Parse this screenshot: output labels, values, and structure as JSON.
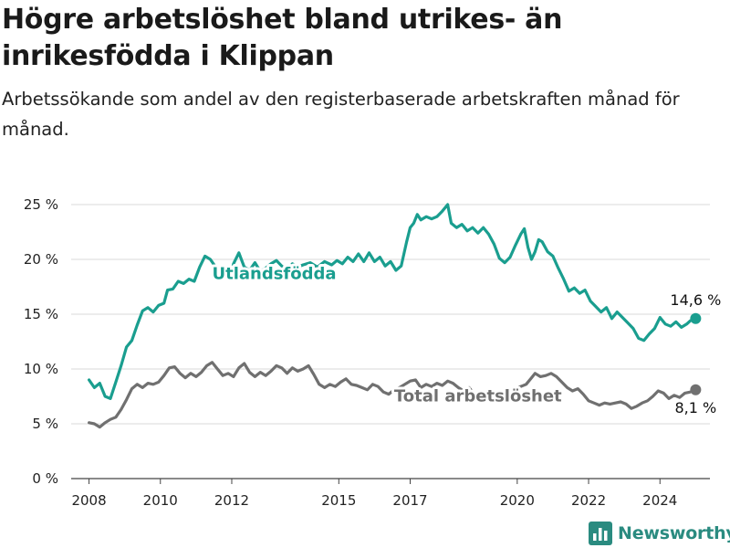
{
  "title": "Högre arbetslöshet bland utrikes- än inrikesfödda i Klippan",
  "subtitle": "Arbetssökande som andel av den registerbaserade arbetskraften månad för månad.",
  "brand": {
    "name": "Newsworthy",
    "icon": "bar-chart-logo-icon"
  },
  "colors": {
    "foreign_born": "#1a9e8f",
    "total": "#707070",
    "grid": "#d9d9d9",
    "brand": "#2a8b80"
  },
  "chart_data": {
    "type": "line",
    "ylim": [
      0,
      25
    ],
    "xlim": [
      2007.5,
      2025.4
    ],
    "y_ticks": [
      0,
      5,
      10,
      15,
      20,
      25
    ],
    "y_tick_labels": [
      "0 %",
      "5 %",
      "10 %",
      "15 %",
      "20 %",
      "25 %"
    ],
    "x_ticks": [
      2008,
      2010,
      2012,
      2015,
      2017,
      2020,
      2022,
      2024
    ],
    "x_tick_labels": [
      "2008",
      "2010",
      "2012",
      "2015",
      "2017",
      "2020",
      "2022",
      "2024"
    ],
    "grid": true,
    "legend": "inline labels",
    "series": [
      {
        "name": "Utlandsfödda",
        "end_label": "14,6 %",
        "points": [
          [
            2008.0,
            9.0
          ],
          [
            2008.15,
            8.3
          ],
          [
            2008.3,
            8.7
          ],
          [
            2008.45,
            7.5
          ],
          [
            2008.6,
            7.3
          ],
          [
            2008.75,
            8.8
          ],
          [
            2008.9,
            10.3
          ],
          [
            2009.05,
            12.0
          ],
          [
            2009.2,
            12.6
          ],
          [
            2009.35,
            14.0
          ],
          [
            2009.5,
            15.3
          ],
          [
            2009.65,
            15.6
          ],
          [
            2009.8,
            15.2
          ],
          [
            2009.95,
            15.8
          ],
          [
            2010.1,
            16.0
          ],
          [
            2010.2,
            17.2
          ],
          [
            2010.35,
            17.3
          ],
          [
            2010.5,
            18.0
          ],
          [
            2010.65,
            17.8
          ],
          [
            2010.8,
            18.2
          ],
          [
            2010.95,
            18.0
          ],
          [
            2011.1,
            19.3
          ],
          [
            2011.25,
            20.3
          ],
          [
            2011.4,
            20.0
          ],
          [
            2011.55,
            19.3
          ],
          [
            2011.7,
            18.6
          ],
          [
            2011.85,
            18.8
          ],
          [
            2011.95,
            18.3
          ],
          [
            2012.05,
            19.6
          ],
          [
            2012.2,
            20.6
          ],
          [
            2012.35,
            19.3
          ],
          [
            2012.5,
            19.0
          ],
          [
            2012.65,
            19.7
          ],
          [
            2012.8,
            18.9
          ],
          [
            2012.95,
            19.2
          ],
          [
            2013.1,
            19.6
          ],
          [
            2013.25,
            19.9
          ],
          [
            2013.4,
            19.4
          ],
          [
            2013.55,
            19.0
          ],
          [
            2013.7,
            19.6
          ],
          [
            2013.85,
            19.3
          ],
          [
            2014.0,
            19.5
          ],
          [
            2014.2,
            19.7
          ],
          [
            2014.4,
            19.3
          ],
          [
            2014.6,
            19.8
          ],
          [
            2014.8,
            19.5
          ],
          [
            2014.95,
            19.9
          ],
          [
            2015.1,
            19.6
          ],
          [
            2015.25,
            20.2
          ],
          [
            2015.4,
            19.8
          ],
          [
            2015.55,
            20.5
          ],
          [
            2015.7,
            19.8
          ],
          [
            2015.85,
            20.6
          ],
          [
            2016.0,
            19.8
          ],
          [
            2016.15,
            20.2
          ],
          [
            2016.3,
            19.4
          ],
          [
            2016.45,
            19.8
          ],
          [
            2016.6,
            19.0
          ],
          [
            2016.75,
            19.4
          ],
          [
            2016.9,
            21.6
          ],
          [
            2017.0,
            22.9
          ],
          [
            2017.1,
            23.3
          ],
          [
            2017.2,
            24.1
          ],
          [
            2017.3,
            23.6
          ],
          [
            2017.45,
            23.9
          ],
          [
            2017.6,
            23.7
          ],
          [
            2017.75,
            23.9
          ],
          [
            2017.9,
            24.4
          ],
          [
            2018.05,
            25.0
          ],
          [
            2018.15,
            23.3
          ],
          [
            2018.3,
            22.9
          ],
          [
            2018.45,
            23.2
          ],
          [
            2018.6,
            22.6
          ],
          [
            2018.75,
            22.9
          ],
          [
            2018.9,
            22.4
          ],
          [
            2019.05,
            22.9
          ],
          [
            2019.2,
            22.3
          ],
          [
            2019.35,
            21.4
          ],
          [
            2019.5,
            20.1
          ],
          [
            2019.65,
            19.7
          ],
          [
            2019.8,
            20.2
          ],
          [
            2019.95,
            21.3
          ],
          [
            2020.1,
            22.3
          ],
          [
            2020.2,
            22.8
          ],
          [
            2020.3,
            21.1
          ],
          [
            2020.4,
            20.0
          ],
          [
            2020.5,
            20.7
          ],
          [
            2020.6,
            21.8
          ],
          [
            2020.7,
            21.6
          ],
          [
            2020.85,
            20.7
          ],
          [
            2021.0,
            20.3
          ],
          [
            2021.15,
            19.2
          ],
          [
            2021.3,
            18.2
          ],
          [
            2021.45,
            17.1
          ],
          [
            2021.6,
            17.4
          ],
          [
            2021.75,
            16.9
          ],
          [
            2021.9,
            17.2
          ],
          [
            2022.05,
            16.2
          ],
          [
            2022.2,
            15.7
          ],
          [
            2022.35,
            15.2
          ],
          [
            2022.5,
            15.6
          ],
          [
            2022.65,
            14.6
          ],
          [
            2022.8,
            15.2
          ],
          [
            2022.95,
            14.7
          ],
          [
            2023.1,
            14.2
          ],
          [
            2023.25,
            13.7
          ],
          [
            2023.4,
            12.8
          ],
          [
            2023.55,
            12.6
          ],
          [
            2023.7,
            13.2
          ],
          [
            2023.85,
            13.7
          ],
          [
            2024.0,
            14.7
          ],
          [
            2024.15,
            14.1
          ],
          [
            2024.3,
            13.9
          ],
          [
            2024.45,
            14.3
          ],
          [
            2024.6,
            13.8
          ],
          [
            2024.75,
            14.1
          ],
          [
            2024.85,
            14.4
          ],
          [
            2025.0,
            14.6
          ]
        ]
      },
      {
        "name": "Total arbetslöshet",
        "end_label": "8,1 %",
        "points": [
          [
            2008.0,
            5.1
          ],
          [
            2008.15,
            5.0
          ],
          [
            2008.3,
            4.7
          ],
          [
            2008.45,
            5.1
          ],
          [
            2008.6,
            5.4
          ],
          [
            2008.75,
            5.6
          ],
          [
            2008.9,
            6.3
          ],
          [
            2009.05,
            7.2
          ],
          [
            2009.2,
            8.2
          ],
          [
            2009.35,
            8.6
          ],
          [
            2009.5,
            8.3
          ],
          [
            2009.65,
            8.7
          ],
          [
            2009.8,
            8.6
          ],
          [
            2009.95,
            8.8
          ],
          [
            2010.1,
            9.4
          ],
          [
            2010.25,
            10.1
          ],
          [
            2010.4,
            10.2
          ],
          [
            2010.55,
            9.6
          ],
          [
            2010.7,
            9.2
          ],
          [
            2010.85,
            9.6
          ],
          [
            2011.0,
            9.3
          ],
          [
            2011.15,
            9.7
          ],
          [
            2011.3,
            10.3
          ],
          [
            2011.45,
            10.6
          ],
          [
            2011.6,
            10.0
          ],
          [
            2011.75,
            9.4
          ],
          [
            2011.9,
            9.6
          ],
          [
            2012.05,
            9.3
          ],
          [
            2012.2,
            10.1
          ],
          [
            2012.35,
            10.5
          ],
          [
            2012.5,
            9.7
          ],
          [
            2012.65,
            9.3
          ],
          [
            2012.8,
            9.7
          ],
          [
            2012.95,
            9.4
          ],
          [
            2013.1,
            9.8
          ],
          [
            2013.25,
            10.3
          ],
          [
            2013.4,
            10.1
          ],
          [
            2013.55,
            9.6
          ],
          [
            2013.7,
            10.1
          ],
          [
            2013.85,
            9.8
          ],
          [
            2014.0,
            10.0
          ],
          [
            2014.15,
            10.3
          ],
          [
            2014.3,
            9.5
          ],
          [
            2014.45,
            8.6
          ],
          [
            2014.6,
            8.3
          ],
          [
            2014.75,
            8.6
          ],
          [
            2014.9,
            8.4
          ],
          [
            2015.05,
            8.8
          ],
          [
            2015.2,
            9.1
          ],
          [
            2015.35,
            8.6
          ],
          [
            2015.5,
            8.5
          ],
          [
            2015.65,
            8.3
          ],
          [
            2015.8,
            8.1
          ],
          [
            2015.95,
            8.6
          ],
          [
            2016.1,
            8.4
          ],
          [
            2016.25,
            7.9
          ],
          [
            2016.4,
            7.7
          ],
          [
            2016.55,
            8.1
          ],
          [
            2016.7,
            8.3
          ],
          [
            2016.85,
            8.6
          ],
          [
            2017.0,
            8.9
          ],
          [
            2017.15,
            9.0
          ],
          [
            2017.3,
            8.3
          ],
          [
            2017.45,
            8.6
          ],
          [
            2017.6,
            8.4
          ],
          [
            2017.75,
            8.7
          ],
          [
            2017.9,
            8.5
          ],
          [
            2018.05,
            8.9
          ],
          [
            2018.2,
            8.7
          ],
          [
            2018.35,
            8.3
          ],
          [
            2018.5,
            8.0
          ],
          [
            2018.65,
            8.3
          ],
          [
            2018.8,
            7.7
          ],
          [
            2018.95,
            7.9
          ],
          [
            2019.1,
            7.5
          ],
          [
            2019.25,
            7.2
          ],
          [
            2019.4,
            7.3
          ],
          [
            2019.55,
            7.4
          ],
          [
            2019.7,
            7.2
          ],
          [
            2019.85,
            7.8
          ],
          [
            2020.0,
            8.3
          ],
          [
            2020.1,
            8.4
          ],
          [
            2020.25,
            8.6
          ],
          [
            2020.4,
            9.2
          ],
          [
            2020.5,
            9.6
          ],
          [
            2020.65,
            9.3
          ],
          [
            2020.8,
            9.4
          ],
          [
            2020.95,
            9.6
          ],
          [
            2021.1,
            9.3
          ],
          [
            2021.25,
            8.8
          ],
          [
            2021.4,
            8.3
          ],
          [
            2021.55,
            8.0
          ],
          [
            2021.7,
            8.2
          ],
          [
            2021.85,
            7.7
          ],
          [
            2022.0,
            7.1
          ],
          [
            2022.15,
            6.9
          ],
          [
            2022.3,
            6.7
          ],
          [
            2022.45,
            6.9
          ],
          [
            2022.6,
            6.8
          ],
          [
            2022.75,
            6.9
          ],
          [
            2022.9,
            7.0
          ],
          [
            2023.05,
            6.8
          ],
          [
            2023.2,
            6.4
          ],
          [
            2023.35,
            6.6
          ],
          [
            2023.5,
            6.9
          ],
          [
            2023.65,
            7.1
          ],
          [
            2023.8,
            7.5
          ],
          [
            2023.95,
            8.0
          ],
          [
            2024.1,
            7.8
          ],
          [
            2024.25,
            7.3
          ],
          [
            2024.4,
            7.6
          ],
          [
            2024.55,
            7.4
          ],
          [
            2024.7,
            7.8
          ],
          [
            2024.85,
            7.9
          ],
          [
            2025.0,
            8.1
          ]
        ]
      }
    ]
  }
}
